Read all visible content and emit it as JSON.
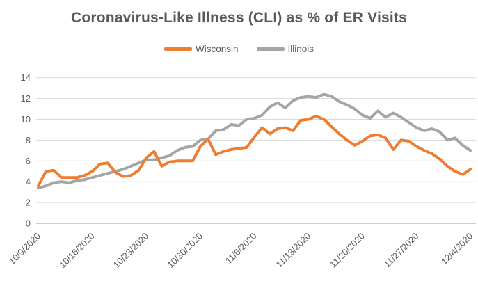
{
  "title": "Coronavirus-Like Illness (CLI) as % of ER Visits",
  "legend": {
    "items": [
      {
        "label": "Wisconsin",
        "color": "#ED7D31"
      },
      {
        "label": "Illinois",
        "color": "#A5A5A5"
      }
    ]
  },
  "chart_data": {
    "type": "line",
    "title": "Coronavirus-Like Illness (CLI) as % of ER Visits",
    "xlabel": "",
    "ylabel": "",
    "ylim": [
      0,
      14
    ],
    "y_ticks": [
      0,
      2,
      4,
      6,
      8,
      10,
      12,
      14
    ],
    "grid": true,
    "legend_position": "top",
    "x_tick_labels": [
      "10/9/2020",
      "10/16/2020",
      "10/23/2020",
      "10/30/2020",
      "11/6/2020",
      "11/13/2020",
      "11/20/2020",
      "11/27/2020",
      "12/4/2020"
    ],
    "x": [
      "10/9/2020",
      "10/10/2020",
      "10/11/2020",
      "10/12/2020",
      "10/13/2020",
      "10/14/2020",
      "10/15/2020",
      "10/16/2020",
      "10/17/2020",
      "10/18/2020",
      "10/19/2020",
      "10/20/2020",
      "10/21/2020",
      "10/22/2020",
      "10/23/2020",
      "10/24/2020",
      "10/25/2020",
      "10/26/2020",
      "10/27/2020",
      "10/28/2020",
      "10/29/2020",
      "10/30/2020",
      "10/31/2020",
      "11/1/2020",
      "11/2/2020",
      "11/3/2020",
      "11/4/2020",
      "11/5/2020",
      "11/6/2020",
      "11/7/2020",
      "11/8/2020",
      "11/9/2020",
      "11/10/2020",
      "11/11/2020",
      "11/12/2020",
      "11/13/2020",
      "11/14/2020",
      "11/15/2020",
      "11/16/2020",
      "11/17/2020",
      "11/18/2020",
      "11/19/2020",
      "11/20/2020",
      "11/21/2020",
      "11/22/2020",
      "11/23/2020",
      "11/24/2020",
      "11/25/2020",
      "11/26/2020",
      "11/27/2020",
      "11/28/2020",
      "11/29/2020",
      "11/30/2020",
      "12/1/2020",
      "12/2/2020",
      "12/3/2020",
      "12/4/2020"
    ],
    "series": [
      {
        "name": "Wisconsin",
        "color": "#ED7D31",
        "values": [
          3.6,
          5.0,
          5.1,
          4.4,
          4.4,
          4.4,
          4.6,
          5.0,
          5.7,
          5.8,
          4.9,
          4.5,
          4.6,
          5.1,
          6.3,
          6.9,
          5.5,
          5.9,
          6.0,
          6.0,
          6.0,
          7.4,
          8.1,
          6.6,
          6.9,
          7.1,
          7.2,
          7.3,
          8.3,
          9.2,
          8.6,
          9.1,
          9.2,
          8.9,
          9.9,
          10.0,
          10.3,
          10.0,
          9.3,
          8.6,
          8.0,
          7.5,
          7.9,
          8.4,
          8.5,
          8.2,
          7.1,
          8.0,
          7.9,
          7.4,
          7.0,
          6.7,
          6.2,
          5.5,
          5.0,
          4.7,
          5.2
        ]
      },
      {
        "name": "Illinois",
        "color": "#A5A5A5",
        "values": [
          3.4,
          3.6,
          3.9,
          4.0,
          3.9,
          4.1,
          4.2,
          4.4,
          4.6,
          4.8,
          5.0,
          5.2,
          5.5,
          5.8,
          6.1,
          6.1,
          6.3,
          6.5,
          7.0,
          7.3,
          7.4,
          8.0,
          8.1,
          8.9,
          9.0,
          9.5,
          9.4,
          10.0,
          10.1,
          10.4,
          11.2,
          11.6,
          11.1,
          11.8,
          12.1,
          12.2,
          12.1,
          12.4,
          12.2,
          11.7,
          11.4,
          11.0,
          10.4,
          10.1,
          10.8,
          10.2,
          10.6,
          10.2,
          9.7,
          9.2,
          8.9,
          9.1,
          8.8,
          8.0,
          8.2,
          7.5,
          7.0
        ]
      }
    ]
  }
}
